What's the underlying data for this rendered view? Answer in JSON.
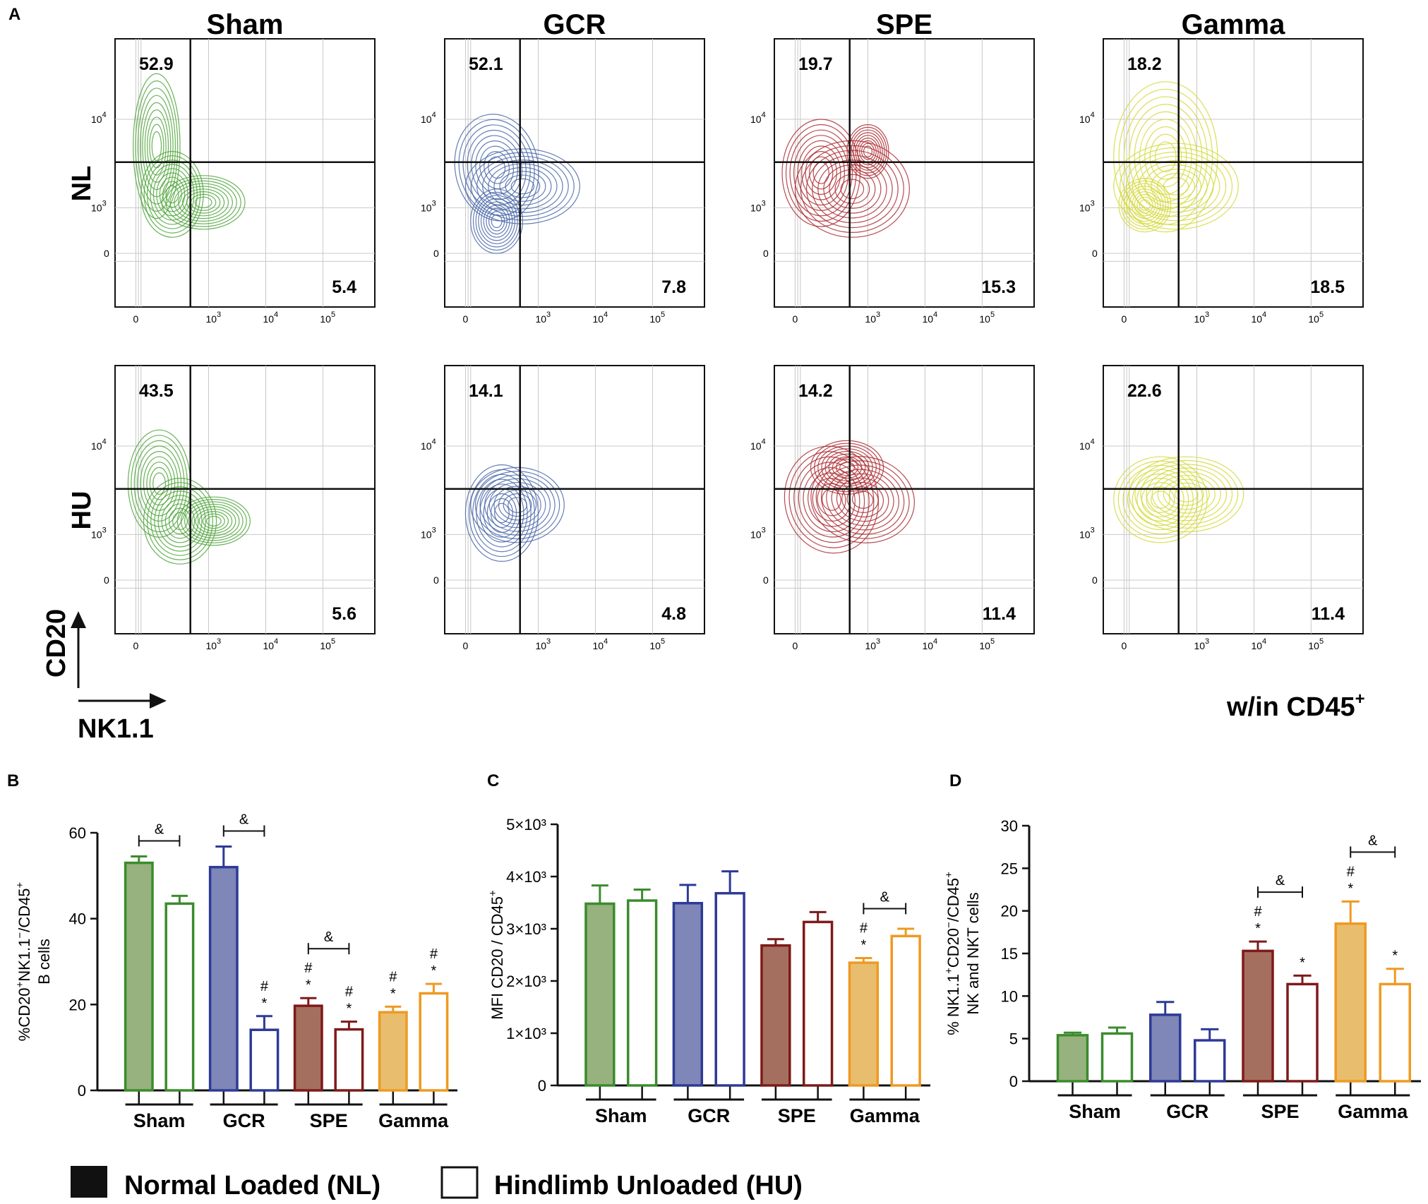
{
  "figure": {
    "panel_letters": [
      "A",
      "B",
      "C",
      "D"
    ],
    "flow_titles": [
      "Sham",
      "GCR",
      "SPE",
      "Gamma"
    ],
    "row_titles": [
      "NL",
      "HU"
    ],
    "y_marker": "CD20",
    "x_marker": "NK1.1",
    "gate_note": "w/in CD45",
    "gate_note_sup": "+",
    "legend": {
      "filled_label": "Normal Loaded (NL)",
      "open_label": "Hindlimb Unloaded (HU)"
    }
  },
  "chart_data": [
    {
      "panel": "A",
      "type": "scatter",
      "subtype": "flow-cytometry-contour",
      "x_axis_ticks": [
        "0",
        "10³",
        "10⁴",
        "10⁵"
      ],
      "y_axis_ticks": [
        "0",
        "10³",
        "10⁴"
      ],
      "quadrant_percentages": [
        {
          "group": "Sham",
          "row": "NL",
          "upper_left": "52.9",
          "lower_right": "5.4",
          "color": "#4fa43a"
        },
        {
          "group": "GCR",
          "row": "NL",
          "upper_left": "52.1",
          "lower_right": "7.8",
          "color": "#4a67a8"
        },
        {
          "group": "SPE",
          "row": "NL",
          "upper_left": "19.7",
          "lower_right": "15.3",
          "color": "#ab2b31"
        },
        {
          "group": "Gamma",
          "row": "NL",
          "upper_left": "18.2",
          "lower_right": "18.5",
          "color": "#d4d93a"
        },
        {
          "group": "Sham",
          "row": "HU",
          "upper_left": "43.5",
          "lower_right": "5.6",
          "color": "#4fa43a"
        },
        {
          "group": "GCR",
          "row": "HU",
          "upper_left": "14.1",
          "lower_right": "4.8",
          "color": "#4a67a8"
        },
        {
          "group": "SPE",
          "row": "HU",
          "upper_left": "14.2",
          "lower_right": "11.4",
          "color": "#ab2b31"
        },
        {
          "group": "Gamma",
          "row": "HU",
          "upper_left": "22.6",
          "lower_right": "11.4",
          "color": "#d4d93a"
        }
      ]
    },
    {
      "panel": "B",
      "type": "bar",
      "ylabel": "%CD20⁺NK1.1⁻/CD45⁺",
      "ylabel2": "B cells",
      "ylim": [
        0,
        60
      ],
      "yticks": [
        "0",
        "20",
        "40",
        "60"
      ],
      "groups": [
        "Sham",
        "GCR",
        "SPE",
        "Gamma"
      ],
      "series": [
        {
          "name": "Normal Loaded (NL)",
          "values": [
            53,
            52,
            19.7,
            18.2
          ],
          "errors": [
            1.5,
            4.8,
            1.8,
            1.3
          ]
        },
        {
          "name": "Hindlimb Unloaded (HU)",
          "values": [
            43.5,
            14.1,
            14.2,
            22.6
          ],
          "errors": [
            1.8,
            3.2,
            1.8,
            2.2
          ]
        }
      ],
      "significance": {
        "brackets": [
          {
            "group": "Sham",
            "label": "&"
          },
          {
            "group": "GCR",
            "label": "&"
          },
          {
            "group": "SPE",
            "label": "&"
          }
        ],
        "marks": [
          {
            "group": "GCR",
            "series": 1,
            "labels": [
              "#",
              "*"
            ]
          },
          {
            "group": "SPE",
            "series": 0,
            "labels": [
              "#",
              "*"
            ]
          },
          {
            "group": "SPE",
            "series": 1,
            "labels": [
              "#",
              "*"
            ]
          },
          {
            "group": "Gamma",
            "series": 0,
            "labels": [
              "#",
              "*"
            ]
          },
          {
            "group": "Gamma",
            "series": 1,
            "labels": [
              "#",
              "*"
            ]
          }
        ]
      }
    },
    {
      "panel": "C",
      "type": "bar",
      "ylabel": "MFI CD20 / CD45⁺",
      "ylim": [
        0,
        5000
      ],
      "yticks": [
        "0",
        "1×10³",
        "2×10³",
        "3×10³",
        "4×10³",
        "5×10³"
      ],
      "groups": [
        "Sham",
        "GCR",
        "SPE",
        "Gamma"
      ],
      "series": [
        {
          "name": "Normal Loaded (NL)",
          "values": [
            3480,
            3490,
            2680,
            2350
          ],
          "errors": [
            350,
            350,
            120,
            90
          ]
        },
        {
          "name": "Hindlimb Unloaded (HU)",
          "values": [
            3540,
            3680,
            3130,
            2860
          ],
          "errors": [
            210,
            420,
            190,
            140
          ]
        }
      ],
      "significance": {
        "brackets": [
          {
            "group": "Gamma",
            "label": "&"
          }
        ],
        "marks": [
          {
            "group": "Gamma",
            "series": 0,
            "labels": [
              "#",
              "*"
            ]
          }
        ]
      }
    },
    {
      "panel": "D",
      "type": "bar",
      "ylabel": "% NK1.1⁺CD20⁻/CD45⁺",
      "ylabel2": "NK and NKT cells",
      "ylim": [
        0,
        30
      ],
      "yticks": [
        "0",
        "5",
        "10",
        "15",
        "20",
        "25",
        "30"
      ],
      "groups": [
        "Sham",
        "GCR",
        "SPE",
        "Gamma"
      ],
      "series": [
        {
          "name": "Normal Loaded (NL)",
          "values": [
            5.4,
            7.8,
            15.3,
            18.5
          ],
          "errors": [
            0.3,
            1.5,
            1.1,
            2.6
          ]
        },
        {
          "name": "Hindlimb Unloaded (HU)",
          "values": [
            5.6,
            4.8,
            11.4,
            11.4
          ],
          "errors": [
            0.7,
            1.3,
            1.0,
            1.8
          ]
        }
      ],
      "significance": {
        "brackets": [
          {
            "group": "SPE",
            "label": "&"
          },
          {
            "group": "Gamma",
            "label": "&"
          }
        ],
        "marks": [
          {
            "group": "SPE",
            "series": 0,
            "labels": [
              "#",
              "*"
            ]
          },
          {
            "group": "SPE",
            "series": 1,
            "labels": [
              "*"
            ]
          },
          {
            "group": "Gamma",
            "series": 0,
            "labels": [
              "#",
              "*"
            ]
          },
          {
            "group": "Gamma",
            "series": 1,
            "labels": [
              "*"
            ]
          }
        ]
      }
    }
  ],
  "colors": {
    "group_fill": [
      "#97b27e",
      "#7f86b8",
      "#a56f5f",
      "#e8bd6e"
    ],
    "group_stroke": [
      "#3a8c2c",
      "#2d3a96",
      "#7f1a1a",
      "#ee9a22"
    ],
    "axis": "#111111",
    "grid": "#bdbdbd"
  }
}
